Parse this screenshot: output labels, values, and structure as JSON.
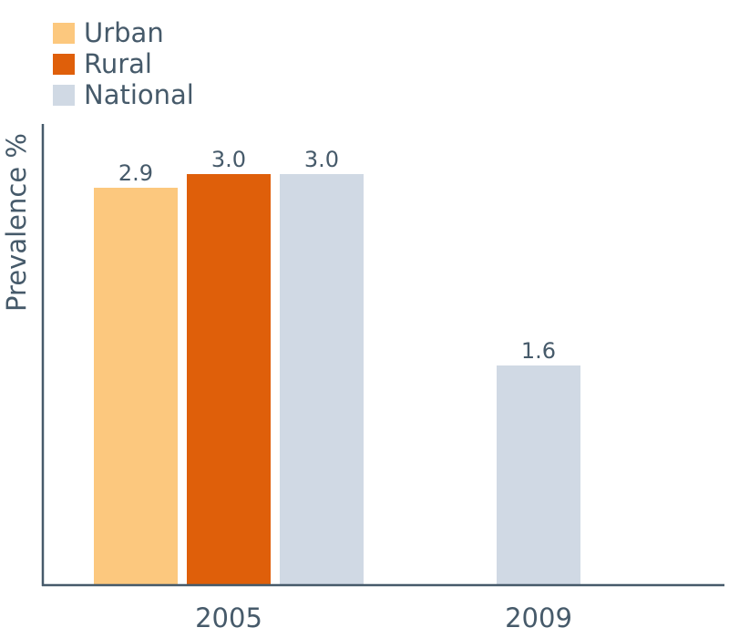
{
  "chart_data": {
    "type": "bar",
    "categories": [
      "2005",
      "2009"
    ],
    "series": [
      {
        "name": "Urban",
        "color": "#fcc87e",
        "values": [
          2.9,
          null
        ],
        "labels": [
          "2.9",
          ""
        ]
      },
      {
        "name": "Rural",
        "color": "#df5f0a",
        "values": [
          3.0,
          null
        ],
        "labels": [
          "3.0",
          ""
        ]
      },
      {
        "name": "National",
        "color": "#d0d9e4",
        "values": [
          3.0,
          1.6
        ],
        "labels": [
          "3.0",
          "1.6"
        ]
      }
    ],
    "xlabel": "",
    "ylabel": "Prevalence %",
    "ylim": [
      0,
      3.2
    ],
    "grid": false,
    "legend_position": "top-left",
    "text_color": "#465a6a",
    "axis_color": "#465a6a"
  }
}
